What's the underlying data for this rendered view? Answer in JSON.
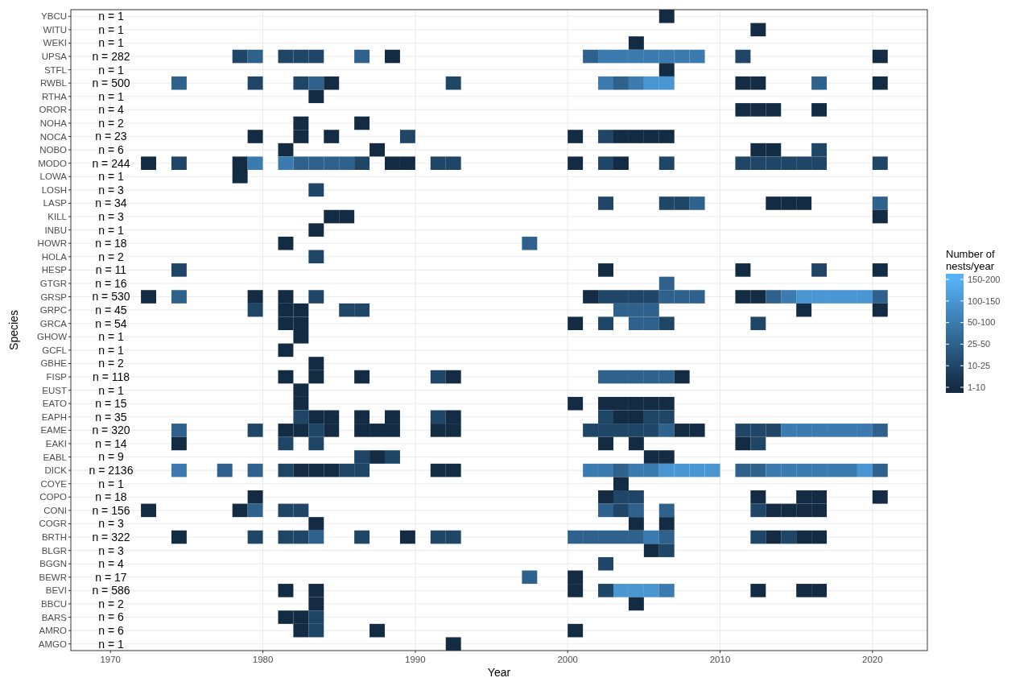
{
  "chart_data": {
    "type": "heatmap",
    "xlabel": "Year",
    "ylabel": "Species",
    "clabel": "Number of nests/year",
    "x": [
      1972.5,
      1973.5,
      1974.5,
      1975.5,
      1976.5,
      1977.5,
      1978.5,
      1979.5,
      1980.5,
      1981.5,
      1982.5,
      1983.5,
      1984.5,
      1985.5,
      1986.5,
      1987.5,
      1988.5,
      1989.5,
      1990.5,
      1991.5,
      1992.5,
      1993.5,
      1994.5,
      1995.5,
      1996.5,
      1997.5,
      1998.5,
      1999.5,
      2000.5,
      2001.5,
      2002.5,
      2003.5,
      2004.5,
      2005.5,
      2006.5,
      2007.5,
      2008.5,
      2009.5,
      2010.5,
      2011.5,
      2012.5,
      2013.5,
      2014.5,
      2015.5,
      2016.5,
      2017.5,
      2018.5,
      2019.5,
      2020.5
    ],
    "xlim": [
      1967.4,
      2023.6
    ],
    "xticks": [
      1970,
      1980,
      1990,
      2000,
      2010,
      2020
    ],
    "grid": true,
    "y_categories": [
      "YBCU",
      "WITU",
      "WEKI",
      "UPSA",
      "STFL",
      "RWBL",
      "RTHA",
      "OROR",
      "NOHA",
      "NOCA",
      "NOBO",
      "MODO",
      "LOWA",
      "LOSH",
      "LASP",
      "KILL",
      "INBU",
      "HOWR",
      "HOLA",
      "HESP",
      "GTGR",
      "GRSP",
      "GRPC",
      "GRCA",
      "GHOW",
      "GCFL",
      "GBHE",
      "FISP",
      "EUST",
      "EATO",
      "EAPH",
      "EAME",
      "EAKI",
      "EABL",
      "DICK",
      "COYE",
      "COPO",
      "CONI",
      "COGR",
      "BRTH",
      "BLGR",
      "BGGN",
      "BEWR",
      "BEVI",
      "BBCU",
      "BARS",
      "AMRO",
      "AMGO"
    ],
    "y2_categories": [
      "n = 1",
      "n = 1",
      "n = 1",
      "n = 282",
      "n = 1",
      "n = 500",
      "n = 1",
      "n = 4",
      "n = 2",
      "n = 23",
      "n = 6",
      "n = 244",
      "n = 1",
      "n = 3",
      "n = 34",
      "n = 3",
      "n = 1",
      "n = 18",
      "n = 2",
      "n = 11",
      "n = 16",
      "n = 530",
      "n = 45",
      "n = 54",
      "n = 1",
      "n = 1",
      "n = 2",
      "n = 118",
      "n = 1",
      "n = 15",
      "n = 35",
      "n = 320",
      "n = 14",
      "n = 9",
      "n = 2136",
      "n = 1",
      "n = 18",
      "n = 156",
      "n = 3",
      "n = 322",
      "n = 3",
      "n = 4",
      "n = 17",
      "n = 586",
      "n = 2",
      "n = 6",
      "n = 6",
      "n = 1"
    ],
    "clim": [
      1,
      6
    ],
    "cticks": [
      {
        "value": 1,
        "label": "1-10"
      },
      {
        "value": 2,
        "label": "10-25"
      },
      {
        "value": 3,
        "label": "25-50"
      },
      {
        "value": 4,
        "label": "50-100"
      },
      {
        "value": 5,
        "label": "100-150"
      },
      {
        "value": 6,
        "label": "150-200"
      }
    ],
    "cells": [
      [
        null,
        null,
        null,
        null,
        null,
        null,
        null,
        null,
        null,
        null,
        null,
        null,
        null,
        null,
        null,
        null,
        null,
        null,
        null,
        null,
        null,
        null,
        null,
        null,
        null,
        null,
        null,
        null,
        null,
        null,
        null,
        null,
        null,
        null,
        1,
        null,
        null,
        null,
        null,
        null,
        null,
        null,
        null,
        null,
        null,
        null,
        null,
        null,
        null
      ],
      [
        null,
        null,
        null,
        null,
        null,
        null,
        null,
        null,
        null,
        null,
        null,
        null,
        null,
        null,
        null,
        null,
        null,
        null,
        null,
        null,
        null,
        null,
        null,
        null,
        null,
        null,
        null,
        null,
        null,
        null,
        null,
        null,
        null,
        null,
        null,
        null,
        null,
        null,
        null,
        null,
        1,
        null,
        null,
        null,
        null,
        null,
        null,
        null,
        null
      ],
      [
        null,
        null,
        null,
        null,
        null,
        null,
        null,
        null,
        null,
        null,
        null,
        null,
        null,
        null,
        null,
        null,
        null,
        null,
        null,
        null,
        null,
        null,
        null,
        null,
        null,
        null,
        null,
        null,
        null,
        null,
        null,
        null,
        1,
        null,
        null,
        null,
        null,
        null,
        null,
        null,
        null,
        null,
        null,
        null,
        null,
        null,
        null,
        null,
        null
      ],
      [
        null,
        null,
        null,
        null,
        null,
        null,
        2,
        3,
        null,
        2,
        2,
        2,
        null,
        null,
        3,
        null,
        1,
        null,
        null,
        null,
        null,
        null,
        null,
        null,
        null,
        null,
        null,
        null,
        null,
        3,
        4,
        4,
        4,
        4,
        4,
        4,
        4,
        null,
        null,
        2,
        null,
        null,
        null,
        null,
        null,
        null,
        null,
        null,
        1
      ],
      [
        null,
        null,
        null,
        null,
        null,
        null,
        null,
        null,
        null,
        null,
        null,
        null,
        null,
        null,
        null,
        null,
        null,
        null,
        null,
        null,
        null,
        null,
        null,
        null,
        null,
        null,
        null,
        null,
        null,
        null,
        null,
        null,
        null,
        null,
        1,
        null,
        null,
        null,
        null,
        null,
        null,
        null,
        null,
        null,
        null,
        null,
        null,
        null,
        null
      ],
      [
        null,
        null,
        3,
        null,
        null,
        null,
        null,
        2,
        null,
        null,
        2,
        3,
        1,
        null,
        null,
        null,
        null,
        null,
        null,
        null,
        2,
        null,
        null,
        null,
        null,
        null,
        null,
        null,
        null,
        null,
        4,
        3,
        4,
        5,
        5,
        null,
        null,
        null,
        null,
        1,
        1,
        null,
        null,
        null,
        3,
        null,
        null,
        null,
        1
      ],
      [
        null,
        null,
        null,
        null,
        null,
        null,
        null,
        null,
        null,
        null,
        null,
        1,
        null,
        null,
        null,
        null,
        null,
        null,
        null,
        null,
        null,
        null,
        null,
        null,
        null,
        null,
        null,
        null,
        null,
        null,
        null,
        null,
        null,
        null,
        null,
        null,
        null,
        null,
        null,
        null,
        null,
        null,
        null,
        null,
        null,
        null,
        null,
        null,
        null
      ],
      [
        null,
        null,
        null,
        null,
        null,
        null,
        null,
        null,
        null,
        null,
        null,
        null,
        null,
        null,
        null,
        null,
        null,
        null,
        null,
        null,
        null,
        null,
        null,
        null,
        null,
        null,
        null,
        null,
        null,
        null,
        null,
        null,
        null,
        null,
        null,
        null,
        null,
        null,
        null,
        1,
        1,
        1,
        null,
        null,
        1,
        null,
        null,
        null,
        null
      ],
      [
        null,
        null,
        null,
        null,
        null,
        null,
        null,
        null,
        null,
        null,
        1,
        null,
        null,
        null,
        1,
        null,
        null,
        null,
        null,
        null,
        null,
        null,
        null,
        null,
        null,
        null,
        null,
        null,
        null,
        null,
        null,
        null,
        null,
        null,
        null,
        null,
        null,
        null,
        null,
        null,
        null,
        null,
        null,
        null,
        null,
        null,
        null,
        null,
        null
      ],
      [
        null,
        null,
        null,
        null,
        null,
        null,
        null,
        1,
        null,
        null,
        1,
        null,
        1,
        null,
        null,
        null,
        null,
        2,
        null,
        null,
        null,
        null,
        null,
        null,
        null,
        null,
        null,
        null,
        1,
        null,
        2,
        1,
        1,
        1,
        1,
        null,
        null,
        null,
        null,
        null,
        null,
        null,
        null,
        null,
        null,
        null,
        null,
        null,
        null
      ],
      [
        null,
        null,
        null,
        null,
        null,
        null,
        null,
        null,
        null,
        1,
        null,
        null,
        null,
        null,
        null,
        1,
        null,
        null,
        null,
        null,
        null,
        null,
        null,
        null,
        null,
        null,
        null,
        null,
        null,
        null,
        null,
        null,
        null,
        null,
        null,
        null,
        null,
        null,
        null,
        null,
        1,
        1,
        null,
        null,
        2,
        null,
        null,
        null,
        null
      ],
      [
        1,
        null,
        2,
        null,
        null,
        null,
        1,
        4,
        null,
        4,
        3,
        3,
        3,
        3,
        2,
        null,
        1,
        1,
        null,
        2,
        2,
        null,
        null,
        null,
        null,
        null,
        null,
        null,
        1,
        null,
        2,
        1,
        null,
        null,
        2,
        null,
        null,
        null,
        null,
        2,
        2,
        2,
        2,
        2,
        2,
        null,
        null,
        null,
        2
      ],
      [
        null,
        null,
        null,
        null,
        null,
        null,
        1,
        null,
        null,
        null,
        null,
        null,
        null,
        null,
        null,
        null,
        null,
        null,
        null,
        null,
        null,
        null,
        null,
        null,
        null,
        null,
        null,
        null,
        null,
        null,
        null,
        null,
        null,
        null,
        null,
        null,
        null,
        null,
        null,
        null,
        null,
        null,
        null,
        null,
        null,
        null,
        null,
        null,
        null
      ],
      [
        null,
        null,
        null,
        null,
        null,
        null,
        null,
        null,
        null,
        null,
        null,
        2,
        null,
        null,
        null,
        null,
        null,
        null,
        null,
        null,
        null,
        null,
        null,
        null,
        null,
        null,
        null,
        null,
        null,
        null,
        null,
        null,
        null,
        null,
        null,
        null,
        null,
        null,
        null,
        null,
        null,
        null,
        null,
        null,
        null,
        null,
        null,
        null,
        null
      ],
      [
        null,
        null,
        null,
        null,
        null,
        null,
        null,
        null,
        null,
        null,
        null,
        null,
        null,
        null,
        null,
        null,
        null,
        null,
        null,
        null,
        null,
        null,
        null,
        null,
        null,
        null,
        null,
        null,
        null,
        null,
        2,
        null,
        null,
        null,
        2,
        2,
        3,
        null,
        null,
        null,
        null,
        1,
        1,
        1,
        null,
        null,
        null,
        null,
        3
      ],
      [
        null,
        null,
        null,
        null,
        null,
        null,
        null,
        null,
        null,
        null,
        null,
        null,
        1,
        1,
        null,
        null,
        null,
        null,
        null,
        null,
        null,
        null,
        null,
        null,
        null,
        null,
        null,
        null,
        null,
        null,
        null,
        null,
        null,
        null,
        null,
        null,
        null,
        null,
        null,
        null,
        null,
        null,
        null,
        null,
        null,
        null,
        null,
        null,
        1
      ],
      [
        null,
        null,
        null,
        null,
        null,
        null,
        null,
        null,
        null,
        null,
        null,
        1,
        null,
        null,
        null,
        null,
        null,
        null,
        null,
        null,
        null,
        null,
        null,
        null,
        null,
        null,
        null,
        null,
        null,
        null,
        null,
        null,
        null,
        null,
        null,
        null,
        null,
        null,
        null,
        null,
        null,
        null,
        null,
        null,
        null,
        null,
        null,
        null,
        null
      ],
      [
        null,
        null,
        null,
        null,
        null,
        null,
        null,
        null,
        null,
        1,
        null,
        null,
        null,
        null,
        null,
        null,
        null,
        null,
        null,
        null,
        null,
        null,
        null,
        null,
        null,
        3,
        null,
        null,
        null,
        null,
        null,
        null,
        null,
        null,
        null,
        null,
        null,
        null,
        null,
        null,
        null,
        null,
        null,
        null,
        null,
        null,
        null,
        null,
        null
      ],
      [
        null,
        null,
        null,
        null,
        null,
        null,
        null,
        null,
        null,
        null,
        null,
        2,
        null,
        null,
        null,
        null,
        null,
        null,
        null,
        null,
        null,
        null,
        null,
        null,
        null,
        null,
        null,
        null,
        null,
        null,
        null,
        null,
        null,
        null,
        null,
        null,
        null,
        null,
        null,
        null,
        null,
        null,
        null,
        null,
        null,
        null,
        null,
        null,
        null
      ],
      [
        null,
        null,
        2,
        null,
        null,
        null,
        null,
        null,
        null,
        null,
        null,
        null,
        null,
        null,
        null,
        null,
        null,
        null,
        null,
        null,
        null,
        null,
        null,
        null,
        null,
        null,
        null,
        null,
        null,
        null,
        1,
        null,
        null,
        null,
        null,
        null,
        null,
        null,
        null,
        1,
        null,
        null,
        null,
        null,
        2,
        null,
        null,
        null,
        1
      ],
      [
        null,
        null,
        null,
        null,
        null,
        null,
        null,
        null,
        null,
        null,
        null,
        null,
        null,
        null,
        null,
        null,
        null,
        null,
        null,
        null,
        null,
        null,
        null,
        null,
        null,
        null,
        null,
        null,
        null,
        null,
        null,
        null,
        null,
        null,
        3,
        null,
        null,
        null,
        null,
        null,
        null,
        null,
        null,
        null,
        null,
        null,
        null,
        null,
        null
      ],
      [
        1,
        null,
        3,
        null,
        null,
        null,
        null,
        1,
        null,
        1,
        null,
        2,
        null,
        null,
        null,
        null,
        null,
        null,
        null,
        null,
        null,
        null,
        null,
        null,
        null,
        null,
        null,
        null,
        null,
        1,
        2,
        2,
        2,
        2,
        3,
        3,
        3,
        null,
        null,
        1,
        1,
        3,
        4,
        5,
        5,
        5,
        5,
        5,
        3
      ],
      [
        null,
        null,
        null,
        null,
        null,
        null,
        null,
        2,
        null,
        1,
        1,
        null,
        null,
        2,
        2,
        null,
        null,
        null,
        null,
        null,
        null,
        null,
        null,
        null,
        null,
        null,
        null,
        null,
        null,
        null,
        null,
        3,
        3,
        3,
        null,
        null,
        null,
        null,
        null,
        null,
        null,
        null,
        null,
        1,
        null,
        null,
        null,
        null,
        1
      ],
      [
        null,
        null,
        null,
        null,
        null,
        null,
        null,
        null,
        null,
        1,
        1,
        null,
        null,
        null,
        null,
        null,
        null,
        null,
        null,
        null,
        null,
        null,
        null,
        null,
        null,
        null,
        null,
        null,
        1,
        null,
        2,
        null,
        3,
        3,
        2,
        null,
        null,
        null,
        null,
        null,
        2,
        null,
        null,
        null,
        null,
        null,
        null,
        null,
        null
      ],
      [
        null,
        null,
        null,
        null,
        null,
        null,
        null,
        null,
        null,
        null,
        1,
        null,
        null,
        null,
        null,
        null,
        null,
        null,
        null,
        null,
        null,
        null,
        null,
        null,
        null,
        null,
        null,
        null,
        null,
        null,
        null,
        null,
        null,
        null,
        null,
        null,
        null,
        null,
        null,
        null,
        null,
        null,
        null,
        null,
        null,
        null,
        null,
        null,
        null
      ],
      [
        null,
        null,
        null,
        null,
        null,
        null,
        null,
        null,
        null,
        1,
        null,
        null,
        null,
        null,
        null,
        null,
        null,
        null,
        null,
        null,
        null,
        null,
        null,
        null,
        null,
        null,
        null,
        null,
        null,
        null,
        null,
        null,
        null,
        null,
        null,
        null,
        null,
        null,
        null,
        null,
        null,
        null,
        null,
        null,
        null,
        null,
        null,
        null,
        null
      ],
      [
        null,
        null,
        null,
        null,
        null,
        null,
        null,
        null,
        null,
        null,
        null,
        1,
        null,
        null,
        null,
        null,
        null,
        null,
        null,
        null,
        null,
        null,
        null,
        null,
        null,
        null,
        null,
        null,
        null,
        null,
        null,
        null,
        null,
        null,
        null,
        null,
        null,
        null,
        null,
        null,
        null,
        null,
        null,
        null,
        null,
        null,
        null,
        null,
        null
      ],
      [
        null,
        null,
        null,
        null,
        null,
        null,
        null,
        null,
        null,
        1,
        null,
        1,
        null,
        null,
        1,
        null,
        null,
        null,
        null,
        2,
        1,
        null,
        null,
        null,
        null,
        null,
        null,
        null,
        null,
        null,
        3,
        3,
        3,
        3,
        3,
        1,
        null,
        null,
        null,
        null,
        null,
        null,
        null,
        null,
        null,
        null,
        null,
        null,
        null
      ],
      [
        null,
        null,
        null,
        null,
        null,
        null,
        null,
        null,
        null,
        null,
        1,
        null,
        null,
        null,
        null,
        null,
        null,
        null,
        null,
        null,
        null,
        null,
        null,
        null,
        null,
        null,
        null,
        null,
        null,
        null,
        null,
        null,
        null,
        null,
        null,
        null,
        null,
        null,
        null,
        null,
        null,
        null,
        null,
        null,
        null,
        null,
        null,
        null,
        null
      ],
      [
        null,
        null,
        null,
        null,
        null,
        null,
        null,
        null,
        null,
        null,
        1,
        null,
        null,
        null,
        null,
        null,
        null,
        null,
        null,
        null,
        null,
        null,
        null,
        null,
        null,
        null,
        null,
        null,
        1,
        null,
        1,
        1,
        1,
        1,
        1,
        null,
        null,
        null,
        null,
        null,
        null,
        null,
        null,
        null,
        null,
        null,
        null,
        null,
        null
      ],
      [
        null,
        null,
        null,
        null,
        null,
        null,
        null,
        null,
        null,
        null,
        2,
        1,
        1,
        null,
        1,
        null,
        1,
        null,
        null,
        2,
        1,
        null,
        null,
        null,
        null,
        null,
        null,
        null,
        null,
        null,
        2,
        1,
        1,
        2,
        2,
        null,
        null,
        null,
        null,
        null,
        null,
        null,
        null,
        null,
        null,
        null,
        null,
        null,
        null
      ],
      [
        null,
        null,
        3,
        null,
        null,
        null,
        null,
        2,
        null,
        1,
        1,
        2,
        1,
        null,
        1,
        1,
        1,
        null,
        null,
        1,
        1,
        null,
        null,
        null,
        null,
        null,
        null,
        null,
        null,
        2,
        2,
        2,
        2,
        2,
        3,
        1,
        1,
        null,
        null,
        2,
        2,
        2,
        4,
        4,
        4,
        4,
        4,
        4,
        3
      ],
      [
        null,
        null,
        1,
        null,
        null,
        null,
        null,
        null,
        null,
        2,
        null,
        2,
        null,
        null,
        null,
        null,
        null,
        null,
        null,
        null,
        null,
        null,
        null,
        null,
        null,
        null,
        null,
        null,
        null,
        null,
        1,
        null,
        1,
        null,
        null,
        null,
        null,
        null,
        null,
        1,
        2,
        null,
        null,
        null,
        null,
        null,
        null,
        null,
        null
      ],
      [
        null,
        null,
        null,
        null,
        null,
        null,
        null,
        null,
        null,
        null,
        null,
        null,
        null,
        null,
        2,
        1,
        2,
        null,
        null,
        null,
        null,
        null,
        null,
        null,
        null,
        null,
        null,
        null,
        null,
        null,
        null,
        null,
        null,
        1,
        1,
        null,
        null,
        null,
        null,
        null,
        null,
        null,
        null,
        null,
        null,
        null,
        null,
        null,
        null
      ],
      [
        null,
        null,
        4,
        null,
        null,
        3,
        null,
        3,
        null,
        2,
        1,
        1,
        1,
        2,
        2,
        null,
        null,
        null,
        null,
        1,
        1,
        null,
        null,
        null,
        null,
        null,
        null,
        null,
        null,
        4,
        4,
        3,
        4,
        4,
        5,
        5,
        5,
        5,
        null,
        3,
        3,
        4,
        4,
        4,
        4,
        4,
        4,
        5,
        3
      ],
      [
        null,
        null,
        null,
        null,
        null,
        null,
        null,
        null,
        null,
        null,
        null,
        null,
        null,
        null,
        null,
        null,
        null,
        null,
        null,
        null,
        null,
        null,
        null,
        null,
        null,
        null,
        null,
        null,
        null,
        null,
        null,
        1,
        null,
        null,
        null,
        null,
        null,
        null,
        null,
        null,
        null,
        null,
        null,
        null,
        null,
        null,
        null,
        null,
        null
      ],
      [
        null,
        null,
        null,
        null,
        null,
        null,
        null,
        1,
        null,
        null,
        null,
        null,
        null,
        null,
        null,
        null,
        null,
        null,
        null,
        null,
        null,
        null,
        null,
        null,
        null,
        null,
        null,
        null,
        null,
        null,
        1,
        2,
        2,
        null,
        null,
        null,
        null,
        null,
        null,
        null,
        1,
        null,
        null,
        1,
        1,
        null,
        null,
        null,
        1
      ],
      [
        1,
        null,
        null,
        null,
        null,
        null,
        1,
        3,
        null,
        2,
        2,
        null,
        null,
        null,
        null,
        null,
        null,
        null,
        null,
        null,
        null,
        null,
        null,
        null,
        null,
        null,
        null,
        null,
        null,
        null,
        3,
        2,
        3,
        null,
        3,
        null,
        null,
        null,
        null,
        null,
        2,
        1,
        1,
        1,
        1,
        null,
        null,
        null,
        null
      ],
      [
        null,
        null,
        null,
        null,
        null,
        null,
        null,
        null,
        null,
        null,
        null,
        1,
        null,
        null,
        null,
        null,
        null,
        null,
        null,
        null,
        null,
        null,
        null,
        null,
        null,
        null,
        null,
        null,
        null,
        null,
        null,
        null,
        1,
        null,
        1,
        null,
        null,
        null,
        null,
        null,
        null,
        null,
        null,
        null,
        null,
        null,
        null,
        null,
        null
      ],
      [
        null,
        null,
        1,
        null,
        null,
        null,
        null,
        2,
        null,
        2,
        2,
        3,
        null,
        null,
        2,
        null,
        null,
        1,
        null,
        2,
        2,
        null,
        null,
        null,
        null,
        null,
        null,
        null,
        3,
        3,
        3,
        3,
        3,
        4,
        3,
        null,
        null,
        null,
        null,
        null,
        2,
        1,
        2,
        1,
        1,
        null,
        null,
        null,
        null
      ],
      [
        null,
        null,
        null,
        null,
        null,
        null,
        null,
        null,
        null,
        null,
        null,
        null,
        null,
        null,
        null,
        null,
        null,
        null,
        null,
        null,
        null,
        null,
        null,
        null,
        null,
        null,
        null,
        null,
        null,
        null,
        null,
        null,
        null,
        1,
        2,
        null,
        null,
        null,
        null,
        null,
        null,
        null,
        null,
        null,
        null,
        null,
        null,
        null,
        null
      ],
      [
        null,
        null,
        null,
        null,
        null,
        null,
        null,
        null,
        null,
        null,
        null,
        null,
        null,
        null,
        null,
        null,
        null,
        null,
        null,
        null,
        null,
        null,
        null,
        null,
        null,
        null,
        null,
        null,
        null,
        null,
        2,
        null,
        null,
        null,
        null,
        null,
        null,
        null,
        null,
        null,
        null,
        null,
        null,
        null,
        null,
        null,
        null,
        null,
        null
      ],
      [
        null,
        null,
        null,
        null,
        null,
        null,
        null,
        null,
        null,
        null,
        null,
        null,
        null,
        null,
        null,
        null,
        null,
        null,
        null,
        null,
        null,
        null,
        null,
        null,
        null,
        3,
        null,
        null,
        1,
        null,
        null,
        null,
        null,
        null,
        null,
        null,
        null,
        null,
        null,
        null,
        null,
        null,
        null,
        null,
        null,
        null,
        null,
        null,
        null
      ],
      [
        null,
        null,
        null,
        null,
        null,
        null,
        null,
        null,
        null,
        1,
        null,
        1,
        null,
        null,
        null,
        null,
        null,
        null,
        null,
        null,
        null,
        null,
        null,
        null,
        null,
        null,
        null,
        null,
        1,
        null,
        2,
        5,
        5,
        5,
        4,
        null,
        null,
        null,
        null,
        null,
        1,
        null,
        null,
        1,
        1,
        null,
        null,
        null,
        null
      ],
      [
        null,
        null,
        null,
        null,
        null,
        null,
        null,
        null,
        null,
        null,
        null,
        1,
        null,
        null,
        null,
        null,
        null,
        null,
        null,
        null,
        null,
        null,
        null,
        null,
        null,
        null,
        null,
        null,
        null,
        null,
        null,
        null,
        1,
        null,
        null,
        null,
        null,
        null,
        null,
        null,
        null,
        null,
        null,
        null,
        null,
        null,
        null,
        null,
        null
      ],
      [
        null,
        null,
        null,
        null,
        null,
        null,
        null,
        null,
        null,
        1,
        1,
        2,
        null,
        null,
        null,
        null,
        null,
        null,
        null,
        null,
        null,
        null,
        null,
        null,
        null,
        null,
        null,
        null,
        null,
        null,
        null,
        null,
        null,
        null,
        null,
        null,
        null,
        null,
        null,
        null,
        null,
        null,
        null,
        null,
        null,
        null,
        null,
        null,
        null
      ],
      [
        null,
        null,
        null,
        null,
        null,
        null,
        null,
        null,
        null,
        null,
        1,
        2,
        null,
        null,
        null,
        1,
        null,
        null,
        null,
        null,
        null,
        null,
        null,
        null,
        null,
        null,
        null,
        null,
        1,
        null,
        null,
        null,
        null,
        null,
        null,
        null,
        null,
        null,
        null,
        null,
        null,
        null,
        null,
        null,
        null,
        null,
        null,
        null,
        null
      ],
      [
        null,
        null,
        null,
        null,
        null,
        null,
        null,
        null,
        null,
        null,
        null,
        null,
        null,
        null,
        null,
        null,
        null,
        null,
        null,
        null,
        1,
        null,
        null,
        null,
        null,
        null,
        null,
        null,
        null,
        null,
        null,
        null,
        null,
        null,
        null,
        null,
        null,
        null,
        null,
        null,
        null,
        null,
        null,
        null,
        null,
        null,
        null,
        null,
        null
      ]
    ]
  }
}
